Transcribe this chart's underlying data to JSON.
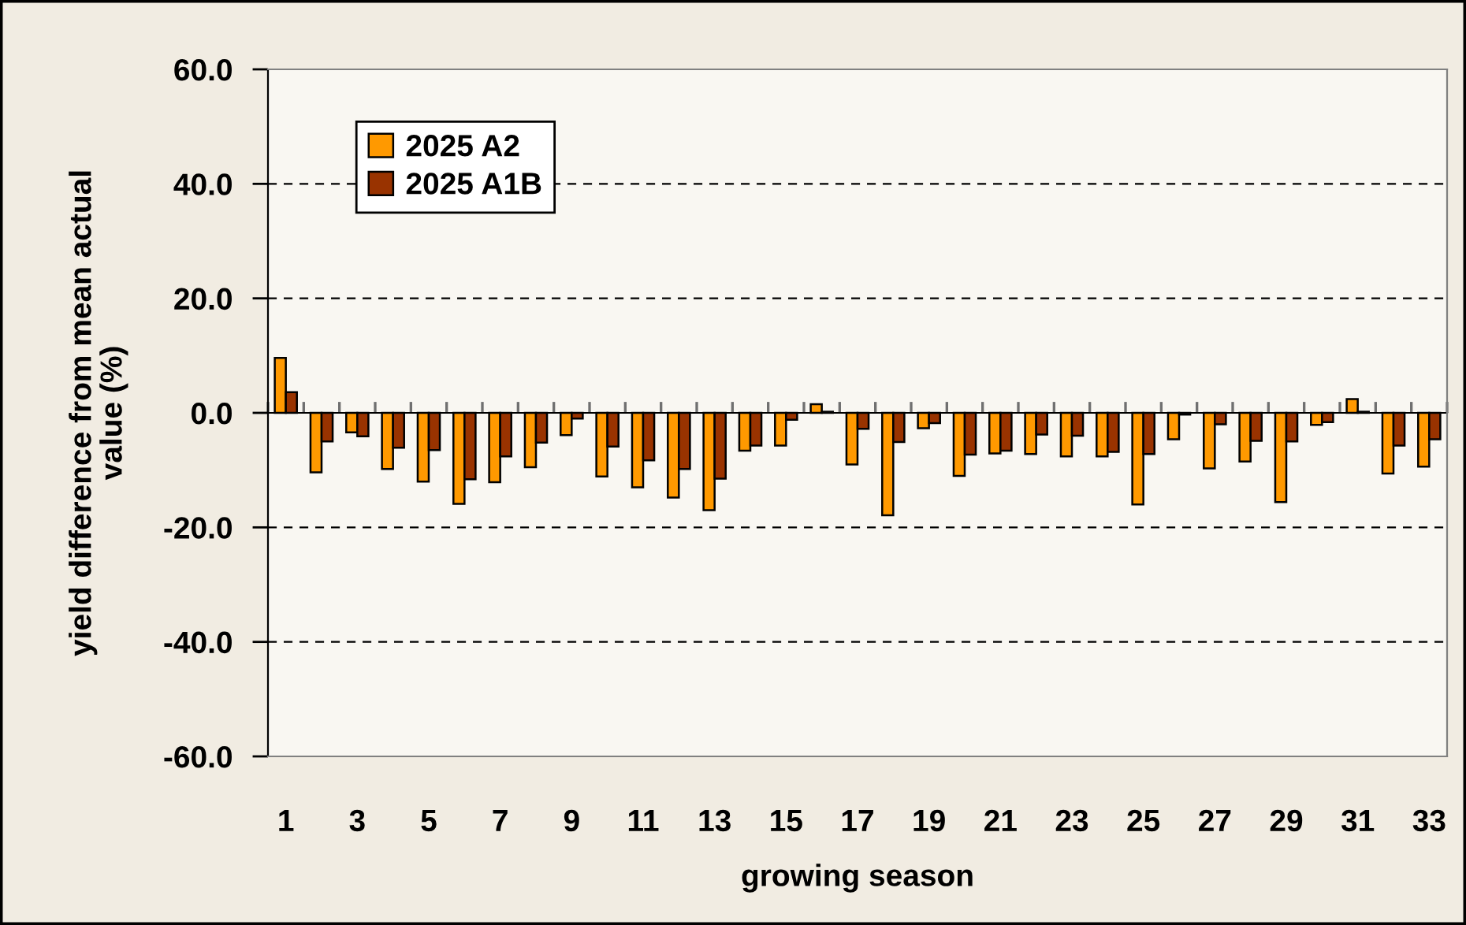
{
  "chart_data": {
    "type": "bar",
    "xlabel": "growing season",
    "ylabel": "yield difference from mean actual\nvalue (%)",
    "categories": [
      "1",
      null,
      "3",
      null,
      "5",
      null,
      "7",
      null,
      "9",
      null,
      "11",
      null,
      "13",
      null,
      "15",
      null,
      "17",
      null,
      "19",
      null,
      "21",
      null,
      "23",
      null,
      "25",
      null,
      "27",
      null,
      "29",
      null,
      "31",
      null,
      "33"
    ],
    "series": [
      {
        "name": "2025 A2",
        "color": "#ff9900",
        "values": [
          9.6,
          -10.4,
          -3.4,
          -9.8,
          -12.0,
          -15.9,
          -12.1,
          -9.5,
          -3.9,
          -11.1,
          -13.0,
          -14.8,
          -17.0,
          -6.6,
          -5.7,
          1.5,
          -9.0,
          -17.9,
          -2.7,
          -11.0,
          -7.1,
          -7.2,
          -7.6,
          -7.6,
          -16.0,
          -4.6,
          -9.7,
          -8.5,
          -15.6,
          -2.1,
          2.4,
          -10.6,
          -9.4
        ]
      },
      {
        "name": "2025 A1B",
        "color": "#993300",
        "values": [
          3.6,
          -5.0,
          -4.1,
          -6.1,
          -6.5,
          -11.6,
          -7.6,
          -5.2,
          -1.0,
          -5.9,
          -8.3,
          -9.8,
          -11.5,
          -5.7,
          -1.2,
          0.2,
          -2.8,
          -5.1,
          -1.8,
          -7.3,
          -6.6,
          -3.8,
          -4.0,
          -6.8,
          -7.2,
          -0.3,
          -2.0,
          -4.9,
          -5.0,
          -1.6,
          0.2,
          -5.7,
          -4.6
        ]
      }
    ],
    "ylim": [
      -60,
      60
    ],
    "yticks": [
      {
        "value": -60,
        "label": "-60.0"
      },
      {
        "value": -40,
        "label": "-40.0"
      },
      {
        "value": -20,
        "label": "-20.0"
      },
      {
        "value": 0,
        "label": "0.0"
      },
      {
        "value": 20,
        "label": "20.0"
      },
      {
        "value": 40,
        "label": "40.0"
      },
      {
        "value": 60,
        "label": "60.0"
      }
    ],
    "grid": "y",
    "legend": "top left"
  }
}
